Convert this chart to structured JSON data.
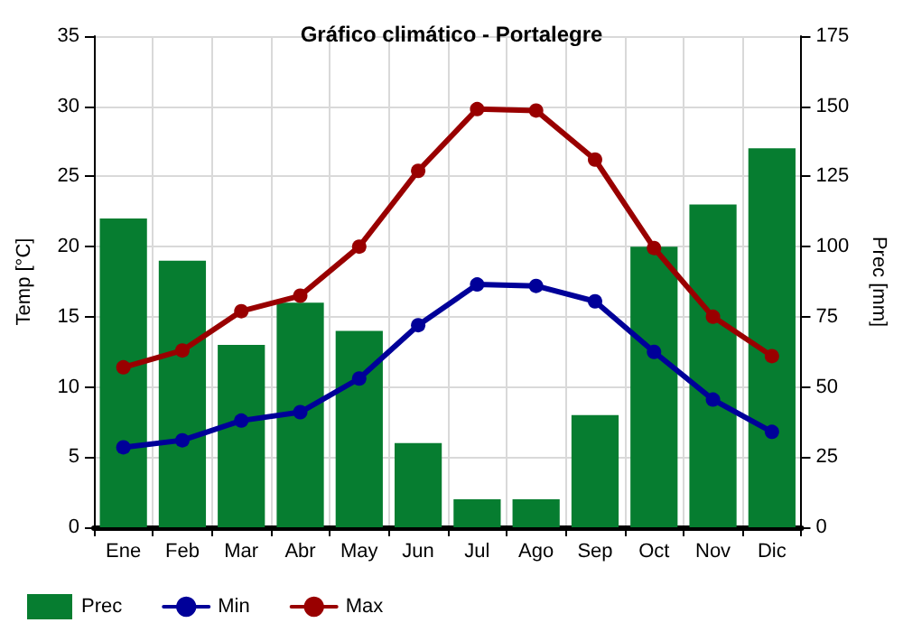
{
  "chart_data": {
    "type": "bar",
    "title": "Gráfico climático - Portalegre",
    "ylabel": "Temp [°C]",
    "y2label": "Prec [mm]",
    "categories": [
      "Ene",
      "Feb",
      "Mar",
      "Abr",
      "May",
      "Jun",
      "Jul",
      "Ago",
      "Sep",
      "Oct",
      "Nov",
      "Dic"
    ],
    "series": [
      {
        "name": "Prec",
        "axis": "y2",
        "color": "#067d30",
        "values": [
          110,
          95,
          65,
          80,
          70,
          30,
          10,
          10,
          40,
          100,
          115,
          135
        ]
      },
      {
        "name": "Min",
        "type": "line",
        "color": "#000099",
        "values": [
          5.7,
          6.2,
          7.6,
          8.2,
          10.6,
          14.4,
          17.3,
          17.2,
          16.1,
          12.5,
          9.1,
          6.8
        ]
      },
      {
        "name": "Max",
        "type": "line",
        "color": "#990000",
        "values": [
          11.4,
          12.6,
          15.4,
          16.5,
          20,
          25.4,
          29.8,
          29.7,
          26.2,
          19.9,
          15,
          12.2
        ]
      }
    ],
    "ylim": [
      0,
      35
    ],
    "yticks": [
      0,
      5,
      10,
      15,
      20,
      25,
      30,
      35
    ],
    "y2lim": [
      0,
      175
    ],
    "y2ticks": [
      0,
      25,
      50,
      75,
      100,
      125,
      150,
      175
    ],
    "grid": true,
    "legend": "bottom left",
    "marker": "circle",
    "line_style": "solid"
  }
}
